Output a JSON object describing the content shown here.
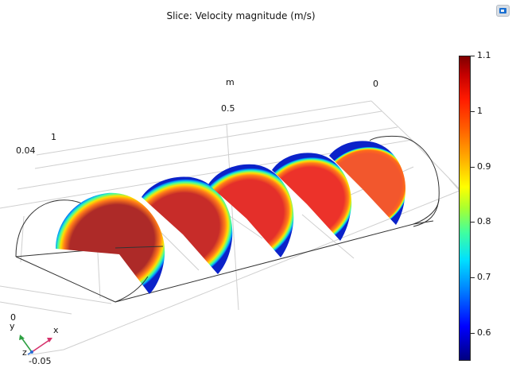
{
  "title": "Slice: Velocity magnitude (m/s)",
  "toolbar": {
    "view_icon": "graphics-view-icon"
  },
  "axes": {
    "z_unit": "m",
    "z_ticks": [
      "0",
      "0.5",
      "1"
    ],
    "y_tick_top": "0.04",
    "y_tick_bottom": "-0.05",
    "y_tick_zero": "0"
  },
  "triad": {
    "x": "x",
    "y": "y",
    "z": "z"
  },
  "colorbar": {
    "min": 0.55,
    "max": 1.1,
    "ticks": [
      "1.1",
      "1",
      "0.9",
      "0.8",
      "0.7",
      "0.6"
    ],
    "tick_values": [
      1.1,
      1.0,
      0.9,
      0.8,
      0.7,
      0.6
    ]
  },
  "slices": {
    "count": 5,
    "center_colors": [
      "#ad2a28",
      "#c72c29",
      "#e42f2a",
      "#ec322a",
      "#f2572d"
    ],
    "rim_color": "#0b22c9"
  }
}
